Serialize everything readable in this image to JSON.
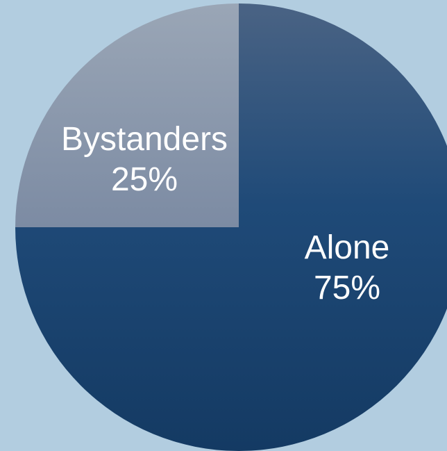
{
  "chart_data": {
    "type": "pie",
    "categories": [
      "Alone",
      "Bystanders"
    ],
    "values": [
      75,
      25
    ],
    "data_labels": [
      "75%",
      "25%"
    ],
    "colors": {
      "Alone": "#1a4570",
      "Bystanders": "#8294ab",
      "background": "#b2cde0"
    },
    "start": "12 o'clock, clockwise",
    "legend": "none"
  }
}
